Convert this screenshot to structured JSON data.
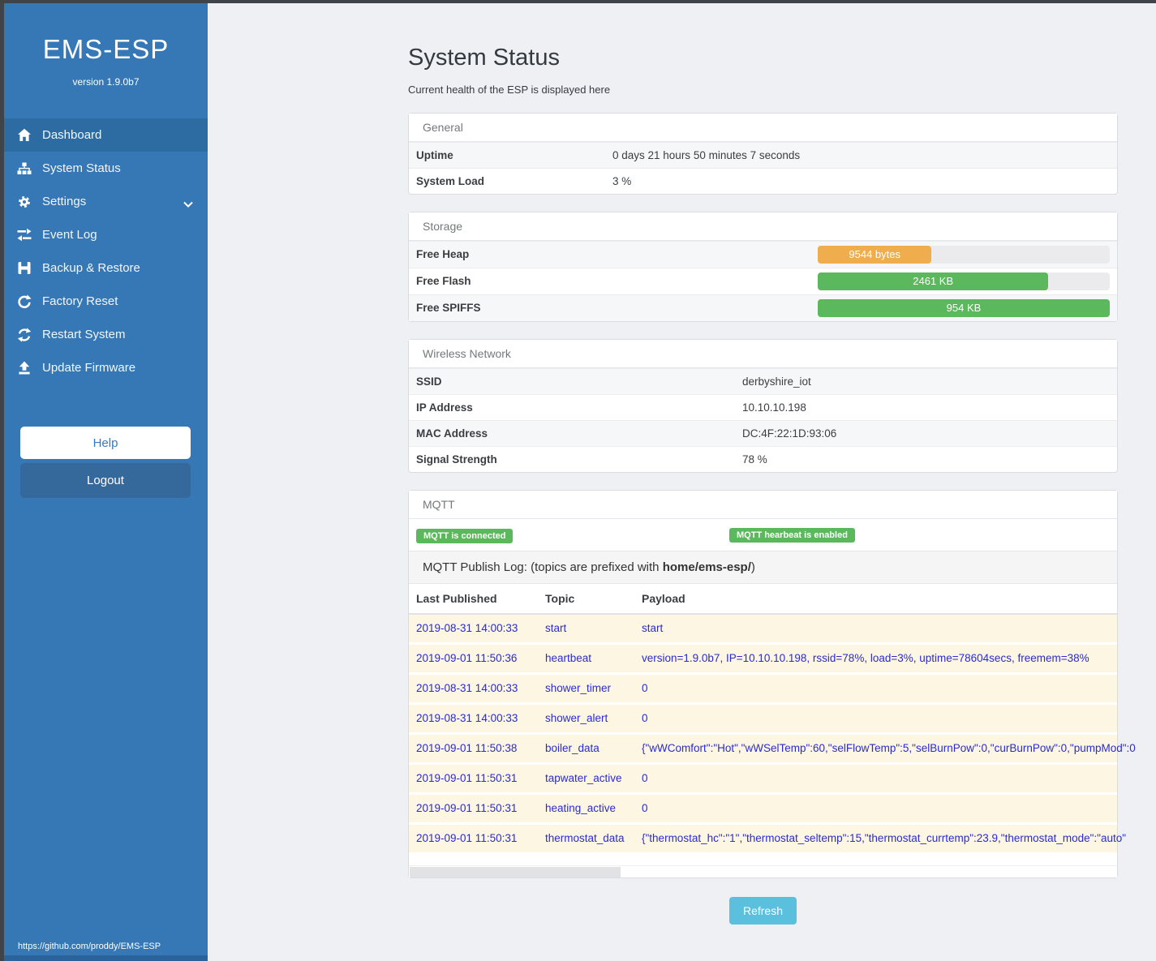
{
  "colors": {
    "sidebar": "#3578b5",
    "sidebar_active": "#2d6ca3",
    "dark_edge": "#3e4449",
    "badge_green": "#5cb85c",
    "heap_orange": "#f0ad4e",
    "flash_green": "#5cb85c",
    "refresh_blue": "#5bc0de",
    "log_row_bg": "#fcf6e3",
    "log_text_blue": "#2b2bd0"
  },
  "sidebar": {
    "brand": "EMS-ESP",
    "version": "version 1.9.0b7",
    "items": [
      {
        "label": "Dashboard",
        "icon": "home-icon",
        "active": true
      },
      {
        "label": "System Status",
        "icon": "sitemap-icon",
        "active": false
      },
      {
        "label": "Settings",
        "icon": "gear-icon",
        "active": false,
        "chevron": "chevron-down-icon"
      },
      {
        "label": "Event Log",
        "icon": "exchange-icon",
        "active": false
      },
      {
        "label": "Backup & Restore",
        "icon": "save-icon",
        "active": false
      },
      {
        "label": "Factory Reset",
        "icon": "redo-icon",
        "active": false
      },
      {
        "label": "Restart System",
        "icon": "sync-icon",
        "active": false
      },
      {
        "label": "Update Firmware",
        "icon": "upload-icon",
        "active": false
      }
    ],
    "help_label": "Help",
    "logout_label": "Logout",
    "footer_link": "https://github.com/proddy/EMS-ESP"
  },
  "header": {
    "title": "System Status",
    "subtitle": "Current health of the ESP is displayed here"
  },
  "general": {
    "title": "General",
    "rows": [
      {
        "label": "Uptime",
        "value": "0 days 21 hours 50 minutes 7 seconds"
      },
      {
        "label": "System Load",
        "value": "3 %"
      }
    ]
  },
  "storage": {
    "title": "Storage",
    "rows": [
      {
        "label": "Free Heap",
        "value": "9544 bytes",
        "percent": 39,
        "color": "#f0ad4e"
      },
      {
        "label": "Free Flash",
        "value": "2461 KB",
        "percent": 79,
        "color": "#5cb85c"
      },
      {
        "label": "Free SPIFFS",
        "value": "954 KB",
        "percent": 100,
        "color": "#5cb85c"
      }
    ]
  },
  "wireless": {
    "title": "Wireless Network",
    "rows": [
      {
        "label": "SSID",
        "value": "derbyshire_iot"
      },
      {
        "label": "IP Address",
        "value": "10.10.10.198"
      },
      {
        "label": "MAC Address",
        "value": "DC:4F:22:1D:93:06"
      },
      {
        "label": "Signal Strength",
        "value": "78 %"
      }
    ]
  },
  "mqtt": {
    "title": "MQTT",
    "badges": [
      "MQTT is connected",
      "MQTT hearbeat is enabled"
    ],
    "log_prefix": "MQTT Publish Log: (topics are prefixed with ",
    "log_bold": "home/ems-esp/",
    "log_suffix": ")",
    "columns": [
      "Last Published",
      "Topic",
      "Payload"
    ],
    "rows": [
      [
        "2019-08-31 14:00:33",
        "start",
        "start"
      ],
      [
        "2019-09-01 11:50:36",
        "heartbeat",
        "version=1.9.0b7, IP=10.10.10.198, rssid=78%, load=3%, uptime=78604secs, freemem=38%"
      ],
      [
        "2019-08-31 14:00:33",
        "shower_timer",
        "0"
      ],
      [
        "2019-08-31 14:00:33",
        "shower_alert",
        "0"
      ],
      [
        "2019-09-01 11:50:38",
        "boiler_data",
        "{\"wWComfort\":\"Hot\",\"wWSelTemp\":60,\"selFlowTemp\":5,\"selBurnPow\":0,\"curBurnPow\":0,\"pumpMod\":0"
      ],
      [
        "2019-09-01 11:50:31",
        "tapwater_active",
        "0"
      ],
      [
        "2019-09-01 11:50:31",
        "heating_active",
        "0"
      ],
      [
        "2019-09-01 11:50:31",
        "thermostat_data",
        "{\"thermostat_hc\":\"1\",\"thermostat_seltemp\":15,\"thermostat_currtemp\":23.9,\"thermostat_mode\":\"auto\""
      ]
    ]
  },
  "refresh_label": "Refresh"
}
